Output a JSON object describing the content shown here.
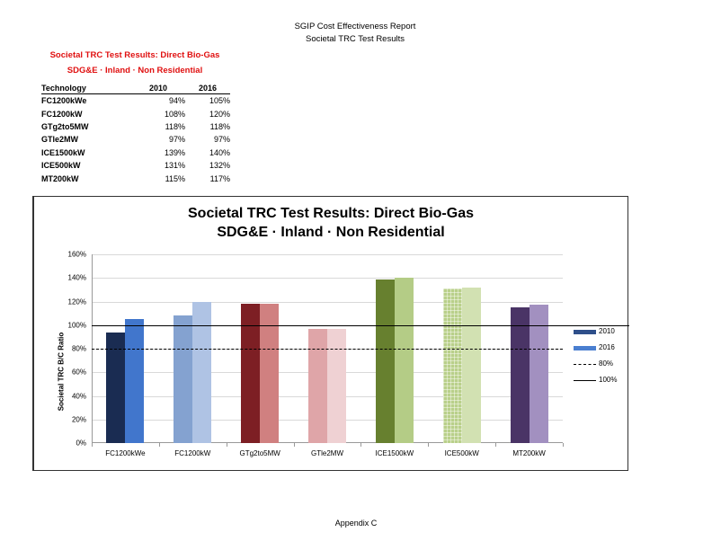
{
  "page": {
    "header_line1": "SGIP Cost Effectiveness Report",
    "header_line2": "Societal TRC Test Results",
    "footer": "Appendix C"
  },
  "table": {
    "title_line1": "Societal TRC Test Results:  Direct Bio-Gas",
    "title_line2": "SDG&E · Inland · Non Residential",
    "title_color": "#e01010",
    "headers": [
      "Technology",
      "2010",
      "2016"
    ],
    "rows": [
      {
        "tech": "FC1200kWe",
        "y2010": "94%",
        "y2016": "105%"
      },
      {
        "tech": "FC1200kW",
        "y2010": "108%",
        "y2016": "120%"
      },
      {
        "tech": "GTg2to5MW",
        "y2010": "118%",
        "y2016": "118%"
      },
      {
        "tech": "GTle2MW",
        "y2010": "97%",
        "y2016": "97%"
      },
      {
        "tech": "ICE1500kW",
        "y2010": "139%",
        "y2016": "140%"
      },
      {
        "tech": "ICE500kW",
        "y2010": "131%",
        "y2016": "132%"
      },
      {
        "tech": "MT200kW",
        "y2010": "115%",
        "y2016": "117%"
      }
    ]
  },
  "chart_data": {
    "type": "bar",
    "title": "Societal TRC Test Results:  Direct Bio-Gas",
    "subtitle": "SDG&E · Inland · Non Residential",
    "xlabel": "",
    "ylabel": "Societal TRC B/C Ratio",
    "ylim": [
      0,
      160
    ],
    "yticks": [
      "0%",
      "20%",
      "40%",
      "60%",
      "80%",
      "100%",
      "120%",
      "140%",
      "160%"
    ],
    "grid": true,
    "legend_position": "right",
    "categories": [
      "FC1200kWe",
      "FC1200kW",
      "GTg2to5MW",
      "GTle2MW",
      "ICE1500kW",
      "ICE500kW",
      "MT200kW"
    ],
    "series": [
      {
        "name": "2010",
        "values": [
          94,
          108,
          118,
          97,
          139,
          131,
          115
        ],
        "colors": [
          "#1a2c52",
          "#84a2d0",
          "#7d1f24",
          "#dfa5a8",
          "#67802f",
          "#b9d08a",
          "#4a3466"
        ],
        "legend_color": "#2e4f8a"
      },
      {
        "name": "2016",
        "values": [
          105,
          120,
          118,
          97,
          140,
          132,
          117
        ],
        "colors": [
          "#4176cc",
          "#afc3e4",
          "#d08080",
          "#efd1d3",
          "#b4cc86",
          "#d2e1b2",
          "#a290c0"
        ],
        "legend_color": "#4a7fd0"
      }
    ],
    "reference_lines": [
      {
        "name": "80%",
        "value": 80,
        "style": "dashed",
        "color": "#000000"
      },
      {
        "name": "100%",
        "value": 100,
        "style": "solid",
        "color": "#000000"
      }
    ],
    "legend": [
      "2010",
      "2016",
      "80%",
      "100%"
    ]
  }
}
